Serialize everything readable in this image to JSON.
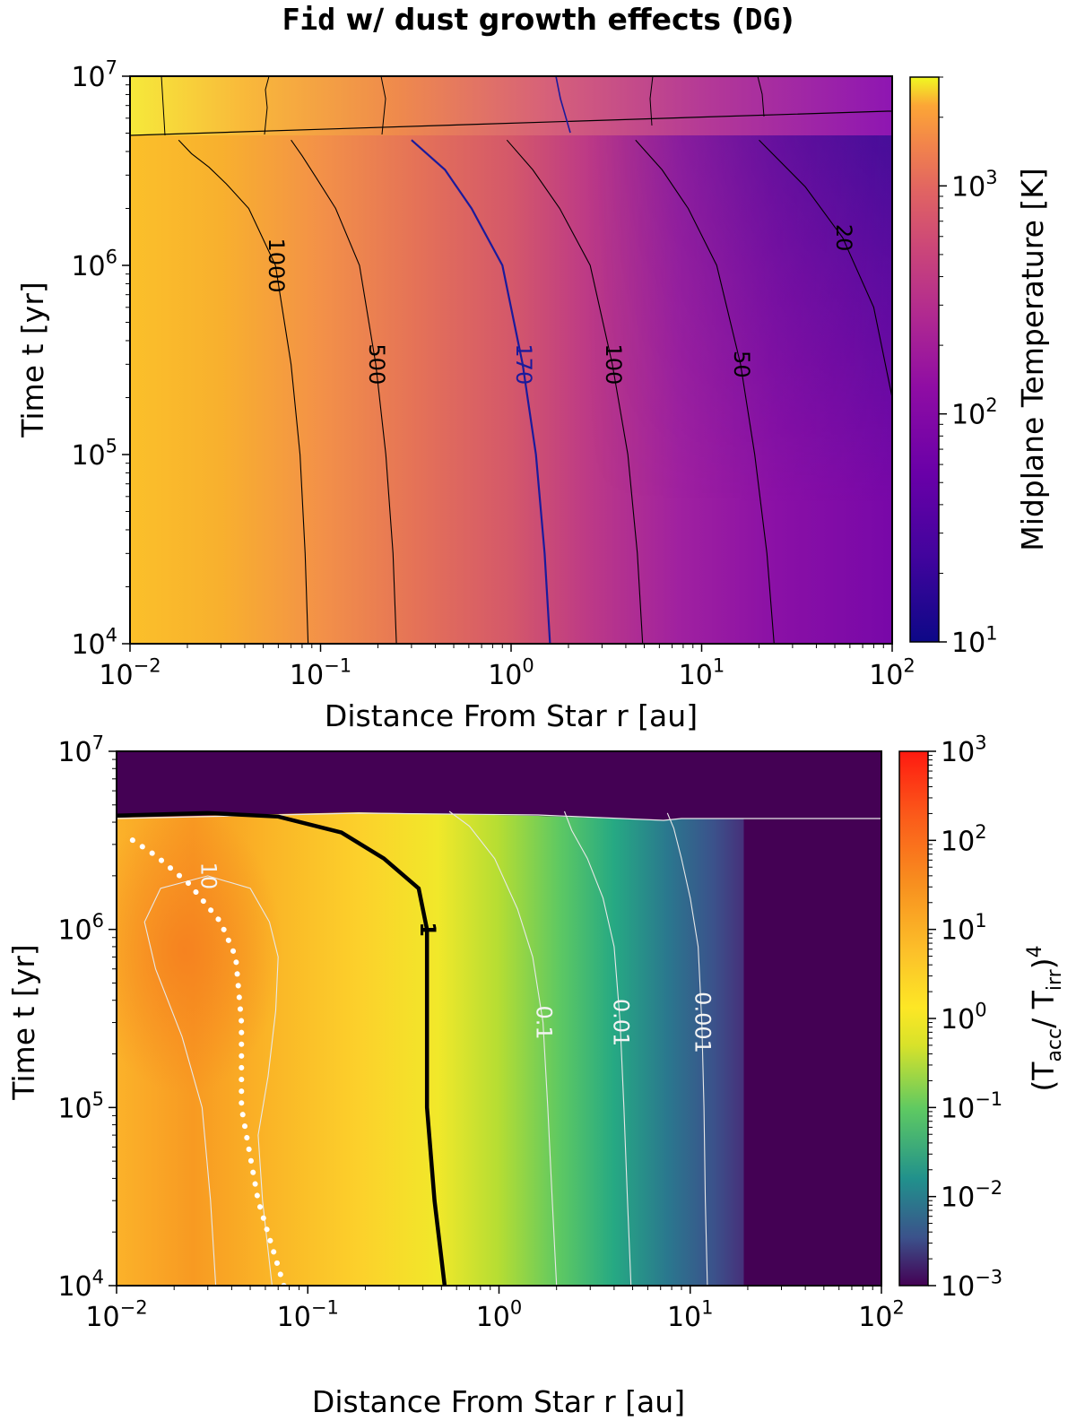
{
  "title": {
    "prefix": "Fid",
    "middle": " w/ dust growth effects (",
    "tag": "DG",
    "suffix": ")"
  },
  "chart_data": [
    {
      "type": "heatmap",
      "xlabel": "Distance From Star r [au]",
      "ylabel": "Time t [yr]",
      "colorbar_label": "Midplane Temperature [K]",
      "xscale": "log",
      "yscale": "log",
      "xlim": [
        0.01,
        100
      ],
      "ylim": [
        10000,
        10000000
      ],
      "x_ticks": [
        "10^-2",
        "10^-1",
        "10^0",
        "10^1",
        "10^2"
      ],
      "y_ticks": [
        "10^4",
        "10^5",
        "10^6",
        "10^7"
      ],
      "colormap": "plasma",
      "colorbar_range": [
        10,
        3000
      ],
      "colorbar_ticks": [
        "10^1",
        "10^2",
        "10^3"
      ],
      "contours": [
        {
          "level": "1000",
          "color": "#000000",
          "points": [
            [
              0.086,
              10000
            ],
            [
              0.083,
              30000
            ],
            [
              0.078,
              100000
            ],
            [
              0.07,
              300000
            ],
            [
              0.058,
              1000000
            ],
            [
              0.042,
              2000000
            ],
            [
              0.032,
              2700000
            ],
            [
              0.026,
              3300000
            ],
            [
              0.021,
              3900000
            ],
            [
              0.018,
              4600000
            ]
          ]
        },
        {
          "level": "500",
          "color": "#000000",
          "points": [
            [
              0.25,
              10000
            ],
            [
              0.24,
              30000
            ],
            [
              0.22,
              100000
            ],
            [
              0.195,
              300000
            ],
            [
              0.16,
              1000000
            ],
            [
              0.12,
              2000000
            ],
            [
              0.095,
              2900000
            ],
            [
              0.08,
              3800000
            ],
            [
              0.07,
              4600000
            ]
          ]
        },
        {
          "level": "170",
          "color": "#1a1a9c",
          "points": [
            [
              1.6,
              10000
            ],
            [
              1.5,
              30000
            ],
            [
              1.35,
              100000
            ],
            [
              1.15,
              300000
            ],
            [
              0.9,
              1000000
            ],
            [
              0.62,
              2000000
            ],
            [
              0.45,
              3200000
            ],
            [
              0.3,
              4600000
            ]
          ]
        },
        {
          "level": "100",
          "color": "#000000",
          "points": [
            [
              4.9,
              10000
            ],
            [
              4.6,
              30000
            ],
            [
              4.1,
              100000
            ],
            [
              3.4,
              300000
            ],
            [
              2.6,
              1000000
            ],
            [
              1.8,
              2000000
            ],
            [
              1.3,
              3200000
            ],
            [
              0.95,
              4600000
            ]
          ]
        },
        {
          "level": "50",
          "color": "#000000",
          "points": [
            [
              24,
              10000
            ],
            [
              22,
              30000
            ],
            [
              19,
              100000
            ],
            [
              16,
              300000
            ],
            [
              12,
              1000000
            ],
            [
              8.5,
              2000000
            ],
            [
              6.2,
              3200000
            ],
            [
              4.5,
              4600000
            ]
          ]
        },
        {
          "level": "20",
          "color": "#000000",
          "points": [
            [
              100,
              200000
            ],
            [
              80,
              600000
            ],
            [
              55,
              1400000
            ],
            [
              35,
              2600000
            ],
            [
              20,
              4600000
            ]
          ]
        }
      ]
    },
    {
      "type": "heatmap",
      "xlabel": "Distance From Star r [au]",
      "ylabel": "Time t [yr]",
      "colorbar_label": "(T_acc/ T_irr)^4",
      "xscale": "log",
      "yscale": "log",
      "xlim": [
        0.01,
        100
      ],
      "ylim": [
        10000,
        10000000
      ],
      "x_ticks": [
        "10^-2",
        "10^-1",
        "10^0",
        "10^1",
        "10^2"
      ],
      "y_ticks": [
        "10^4",
        "10^5",
        "10^6",
        "10^7"
      ],
      "colormap": "viridis-to-orange-red",
      "colorbar_range": [
        0.001,
        1000
      ],
      "colorbar_ticks": [
        "10^-3",
        "10^-2",
        "10^-1",
        "10^0",
        "10^1",
        "10^2",
        "10^3"
      ],
      "contours": [
        {
          "level": "10",
          "color": "#e8e8e8",
          "points": [
            [
              0.033,
              10000
            ],
            [
              0.031,
              30000
            ],
            [
              0.028,
              100000
            ],
            [
              0.022,
              250000
            ],
            [
              0.016,
              600000
            ],
            [
              0.014,
              1100000
            ],
            [
              0.017,
              1700000
            ],
            [
              0.03,
              2000000
            ],
            [
              0.05,
              1700000
            ],
            [
              0.063,
              1100000
            ],
            [
              0.07,
              700000
            ],
            [
              0.068,
              350000
            ],
            [
              0.062,
              150000
            ],
            [
              0.055,
              70000
            ],
            [
              0.058,
              30000
            ],
            [
              0.065,
              10000
            ]
          ]
        },
        {
          "level": "1",
          "color": "#000000",
          "points": [
            [
              0.52,
              10000
            ],
            [
              0.46,
              30000
            ],
            [
              0.42,
              100000
            ],
            [
              0.42,
              300000
            ],
            [
              0.42,
              1000000
            ],
            [
              0.38,
              1700000
            ],
            [
              0.25,
              2500000
            ],
            [
              0.15,
              3500000
            ],
            [
              0.07,
              4300000
            ],
            [
              0.03,
              4500000
            ],
            [
              0.01,
              4350000
            ]
          ]
        },
        {
          "level": "0.1",
          "color": "#e8e8e8",
          "points": [
            [
              2.0,
              10000
            ],
            [
              1.9,
              30000
            ],
            [
              1.8,
              100000
            ],
            [
              1.7,
              300000
            ],
            [
              1.5,
              700000
            ],
            [
              1.25,
              1300000
            ],
            [
              0.95,
              2500000
            ],
            [
              0.7,
              3800000
            ],
            [
              0.55,
              4600000
            ]
          ]
        },
        {
          "level": "0.01",
          "color": "#e8e8e8",
          "points": [
            [
              4.9,
              10000
            ],
            [
              4.7,
              30000
            ],
            [
              4.5,
              100000
            ],
            [
              4.3,
              300000
            ],
            [
              4.0,
              800000
            ],
            [
              3.5,
              1500000
            ],
            [
              2.9,
              2500000
            ],
            [
              2.4,
              3600000
            ],
            [
              2.2,
              4600000
            ]
          ]
        },
        {
          "level": "0.001",
          "color": "#e8e8e8",
          "points": [
            [
              12.3,
              10000
            ],
            [
              12,
              30000
            ],
            [
              11.8,
              100000
            ],
            [
              11.5,
              300000
            ],
            [
              11,
              800000
            ],
            [
              10,
              1500000
            ],
            [
              9,
              2500000
            ],
            [
              8.2,
              3700000
            ],
            [
              7.6,
              4500000
            ]
          ]
        }
      ],
      "dotted_line_points": [
        [
          0.075,
          10000
        ],
        [
          0.055,
          30000
        ],
        [
          0.045,
          100000
        ],
        [
          0.045,
          300000
        ],
        [
          0.042,
          700000
        ],
        [
          0.035,
          1100000
        ],
        [
          0.024,
          1800000
        ],
        [
          0.016,
          2600000
        ],
        [
          0.011,
          3400000
        ]
      ]
    }
  ]
}
